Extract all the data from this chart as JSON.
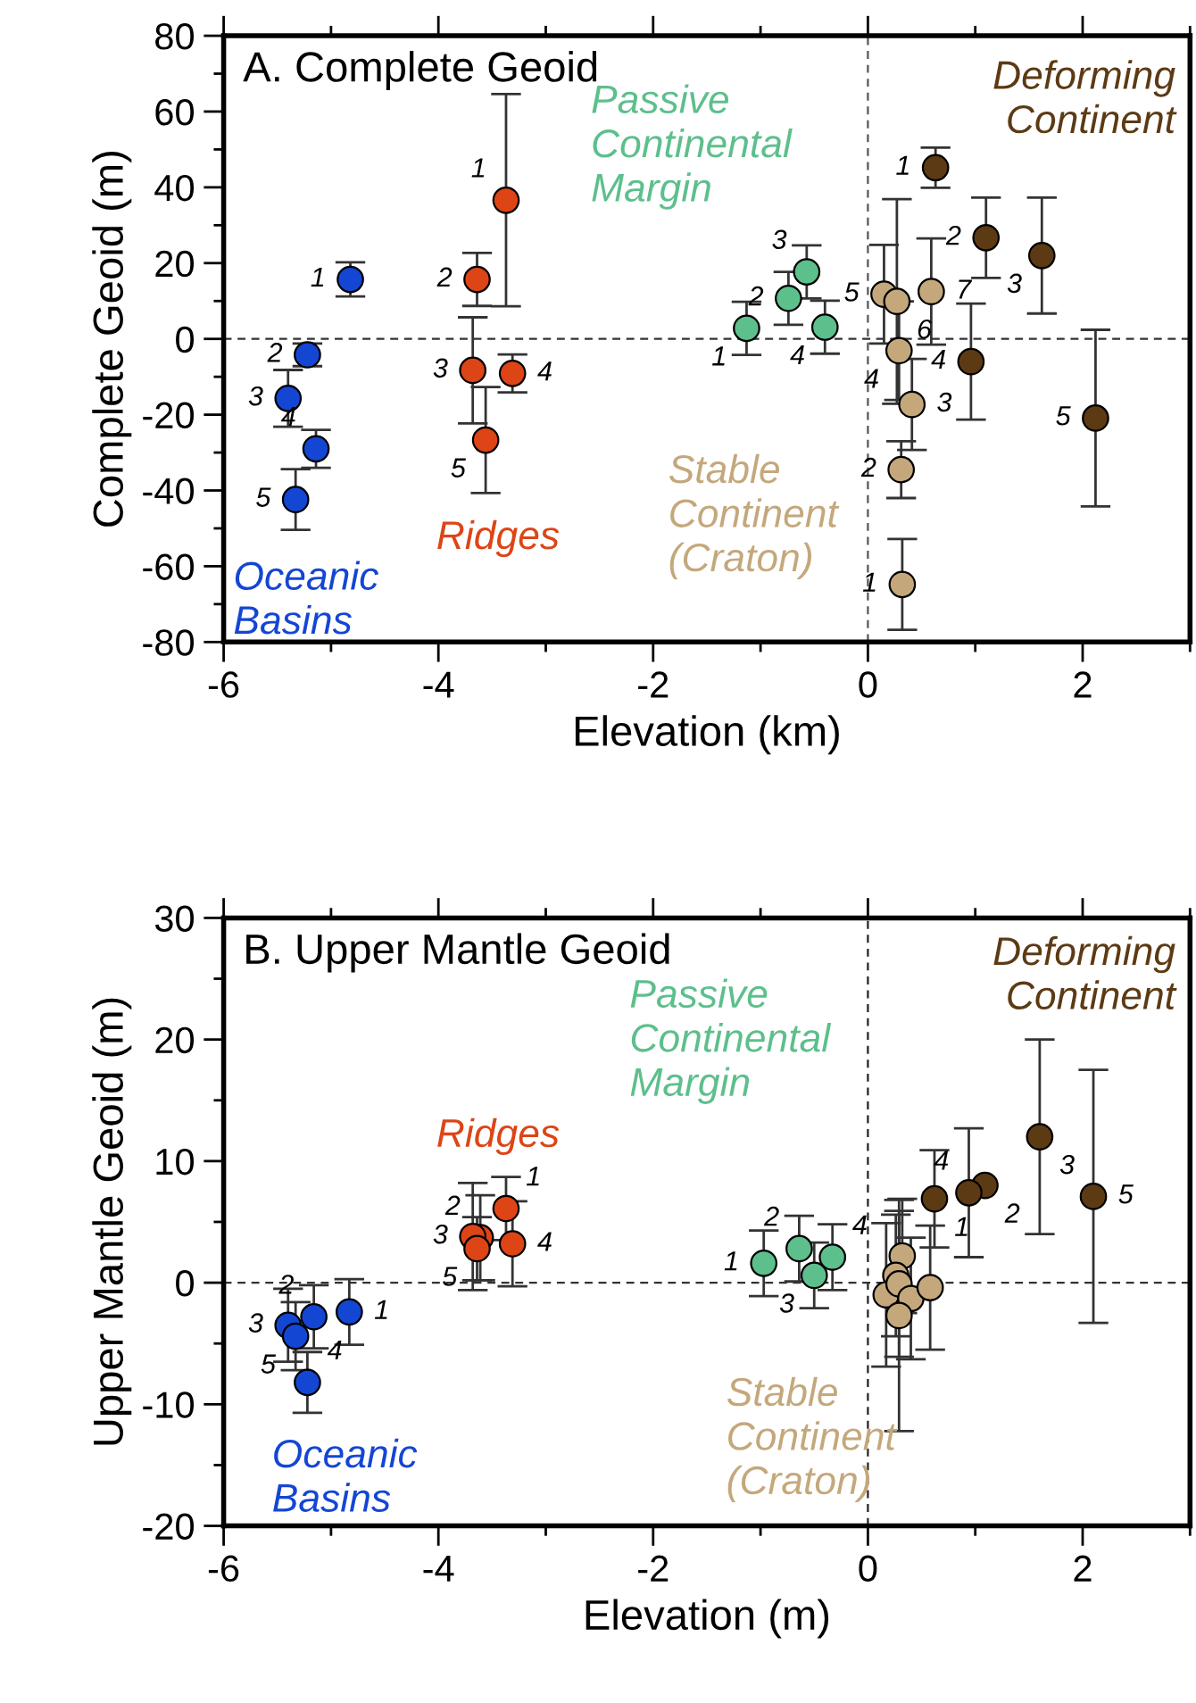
{
  "chart_data": [
    {
      "type": "scatter",
      "title": "A. Complete Geoid",
      "xlabel": "Elevation (km)",
      "ylabel": "Complete Geoid (m)",
      "xlim": [
        -6,
        3
      ],
      "ylim": [
        -80,
        80
      ],
      "xticks": [
        -6,
        -4,
        -2,
        0,
        2
      ],
      "yticks": [
        -80,
        -60,
        -40,
        -20,
        0,
        20,
        40,
        60,
        80
      ],
      "grid": false,
      "marker": "circle",
      "ref_lines": [
        {
          "axis": "x",
          "value": 0,
          "line_style": "dashed",
          "color": "#555555"
        },
        {
          "axis": "y",
          "value": 0,
          "line_style": "dashed",
          "color": "#333333"
        }
      ],
      "series": [
        {
          "name": "Oceanic\nBasins",
          "color": "#1446d4",
          "x": [
            -4.82,
            -5.22,
            -5.4,
            -5.14,
            -5.33
          ],
          "values": [
            15.7,
            -4.2,
            -15.7,
            -29,
            -42.4
          ],
          "errors": [
            4.5,
            3,
            7.5,
            5,
            8
          ]
        },
        {
          "name": "Ridges",
          "color": "#dd4516",
          "x": [
            -3.37,
            -3.64,
            -3.68,
            -3.31,
            -3.56
          ],
          "values": [
            36.6,
            15.7,
            -8.3,
            -9.1,
            -26.7
          ],
          "errors": [
            28,
            7,
            14,
            5,
            14
          ]
        },
        {
          "name": "Passive\nContinental\nMargin",
          "color": "#5dbf8c",
          "x": [
            -1.13,
            -0.74,
            -0.57,
            -0.4
          ],
          "values": [
            2.8,
            10.7,
            17.7,
            3.1
          ],
          "errors": [
            7,
            7,
            7,
            7
          ]
        },
        {
          "name": "Stable\nContinent\n(Craton)",
          "color": "#c4a87c",
          "x": [
            0.32,
            0.31,
            0.41,
            0.29,
            0.15,
            0.27,
            0.59
          ],
          "values": [
            -64.8,
            -34.5,
            -17.3,
            -3.1,
            11.8,
            9.9,
            12.5
          ],
          "errors": [
            12,
            7.5,
            12,
            13,
            13,
            27,
            14
          ]
        },
        {
          "name": "Deforming\nContinent",
          "color": "#5c3a14",
          "x": [
            0.63,
            1.1,
            1.62,
            0.96,
            2.12
          ],
          "values": [
            45.2,
            26.7,
            22,
            -6,
            -20.9
          ],
          "errors": [
            5.3,
            10.6,
            15.3,
            15.3,
            23.3
          ]
        }
      ],
      "annotations": [
        {
          "text": "1",
          "x": -4.82,
          "y": 15.7
        },
        {
          "text": "2",
          "x": -5.22,
          "y": -4.2
        },
        {
          "text": "3",
          "x": -5.4,
          "y": -15.7
        },
        {
          "text": "4",
          "x": -5.14,
          "y": -29
        },
        {
          "text": "5",
          "x": -5.33,
          "y": -42.4
        },
        {
          "text": "1",
          "x": -3.37,
          "y": 36.6
        },
        {
          "text": "2",
          "x": -3.64,
          "y": 15.7
        },
        {
          "text": "3",
          "x": -3.68,
          "y": -8.3
        },
        {
          "text": "4",
          "x": -3.31,
          "y": -9.1
        },
        {
          "text": "5",
          "x": -3.56,
          "y": -26.7
        },
        {
          "text": "1",
          "x": -1.13,
          "y": 2.8
        },
        {
          "text": "2",
          "x": -0.74,
          "y": 10.7
        },
        {
          "text": "3",
          "x": -0.57,
          "y": 17.7
        },
        {
          "text": "4",
          "x": -0.4,
          "y": 3.1
        },
        {
          "text": "1",
          "x": 0.32,
          "y": -64.8
        },
        {
          "text": "2",
          "x": 0.31,
          "y": -34.5
        },
        {
          "text": "3",
          "x": 0.41,
          "y": -17.3
        },
        {
          "text": "4",
          "x": 0.29,
          "y": -3.1
        },
        {
          "text": "5",
          "x": 0.15,
          "y": 11.8
        },
        {
          "text": "6",
          "x": 0.27,
          "y": 9.9
        },
        {
          "text": "7",
          "x": 0.59,
          "y": 12.5
        },
        {
          "text": "1",
          "x": 0.63,
          "y": 45.2
        },
        {
          "text": "2",
          "x": 1.1,
          "y": 26.7
        },
        {
          "text": "3",
          "x": 1.62,
          "y": 22
        },
        {
          "text": "4",
          "x": 0.96,
          "y": -6
        },
        {
          "text": "5",
          "x": 2.12,
          "y": -20.9
        }
      ]
    },
    {
      "type": "scatter",
      "title": "B. Upper Mantle Geoid",
      "xlabel": "Elevation (m)",
      "ylabel": "Upper Mantle Geoid (m)",
      "xlim": [
        -6,
        3
      ],
      "ylim": [
        -20,
        30
      ],
      "xticks": [
        -6,
        -4,
        -2,
        0,
        2
      ],
      "yticks": [
        -20,
        -10,
        0,
        10,
        20,
        30
      ],
      "grid": false,
      "marker": "circle",
      "ref_lines": [
        {
          "axis": "x",
          "value": 0,
          "line_style": "dashed",
          "color": "#222222"
        },
        {
          "axis": "y",
          "value": 0,
          "line_style": "dashed",
          "color": "#333333"
        }
      ],
      "series": [
        {
          "name": "Oceanic\nBasins",
          "color": "#1446d4",
          "x": [
            -4.83,
            -5.16,
            -5.4,
            -5.22,
            -5.33
          ],
          "values": [
            -2.4,
            -2.8,
            -3.5,
            -8.2,
            -4.4
          ],
          "errors": [
            2.7,
            2.6,
            3,
            2.5,
            2.8
          ]
        },
        {
          "name": "Ridges",
          "color": "#dd4516",
          "x": [
            -3.37,
            -3.61,
            -3.68,
            -3.31,
            -3.64
          ],
          "values": [
            6.1,
            3.7,
            3.8,
            3.2,
            2.8
          ],
          "errors": [
            2.6,
            3.5,
            4.4,
            3.5,
            2.6
          ]
        },
        {
          "name": "Passive\nContinental\nMargin",
          "color": "#5dbf8c",
          "x": [
            -0.97,
            -0.64,
            -0.5,
            -0.33
          ],
          "values": [
            1.6,
            2.8,
            0.6,
            2.1
          ],
          "errors": [
            2.7,
            2.7,
            2.7,
            2.7
          ]
        },
        {
          "name": "Stable\nContinent\n(Craton)",
          "color": "#c4a87c",
          "x": [
            0.32,
            0.26,
            0.17,
            0.29,
            0.4,
            0.58,
            0.29
          ],
          "values": [
            2.2,
            0.6,
            -1,
            -0.1,
            -1.3,
            -0.4,
            -2.7
          ],
          "errors": [
            4.7,
            5,
            5.9,
            6,
            5,
            5.1,
            9.5
          ]
        },
        {
          "name": "Deforming\nContinent",
          "color": "#5c3a14",
          "x": [
            0.62,
            1.09,
            1.6,
            0.94,
            2.1
          ],
          "values": [
            6.9,
            8,
            12,
            7.4,
            7.1
          ],
          "errors": [
            4,
            null,
            8,
            5.3,
            10.4
          ]
        }
      ],
      "annotations": [
        {
          "text": "1",
          "x": -4.83,
          "y": -2.4
        },
        {
          "text": "2",
          "x": -5.16,
          "y": -2.8
        },
        {
          "text": "3",
          "x": -5.4,
          "y": -3.5
        },
        {
          "text": "4",
          "x": -5.22,
          "y": -8.2
        },
        {
          "text": "5",
          "x": -5.33,
          "y": -4.4
        },
        {
          "text": "1",
          "x": -3.37,
          "y": 6.1
        },
        {
          "text": "2",
          "x": -3.61,
          "y": 3.7
        },
        {
          "text": "3",
          "x": -3.68,
          "y": 3.8
        },
        {
          "text": "4",
          "x": -3.31,
          "y": 3.2
        },
        {
          "text": "5",
          "x": -3.64,
          "y": 2.8
        },
        {
          "text": "1",
          "x": -0.97,
          "y": 1.6
        },
        {
          "text": "2",
          "x": -0.64,
          "y": 2.8
        },
        {
          "text": "3",
          "x": -0.5,
          "y": 0.6
        },
        {
          "text": "4",
          "x": -0.33,
          "y": 2.1
        },
        {
          "text": "1",
          "x": 0.62,
          "y": 6.9
        },
        {
          "text": "2",
          "x": 1.09,
          "y": 8
        },
        {
          "text": "3",
          "x": 1.6,
          "y": 12
        },
        {
          "text": "4",
          "x": 0.94,
          "y": 7.4
        },
        {
          "text": "5",
          "x": 2.1,
          "y": 7.1
        }
      ]
    }
  ]
}
